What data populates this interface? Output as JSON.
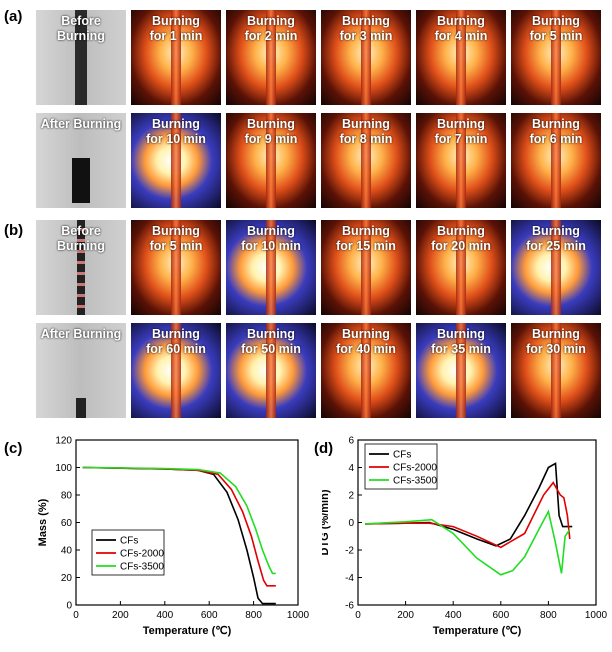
{
  "panel_labels": {
    "a": "(a)",
    "b": "(b)",
    "c": "(c)",
    "d": "(d)"
  },
  "row_a1": [
    "Before\nBurning",
    "Burning\nfor 1 min",
    "Burning\nfor 2 min",
    "Burning\nfor 3 min",
    "Burning\nfor 4 min",
    "Burning\nfor 5 min"
  ],
  "row_a2": [
    "After Burning",
    "Burning\nfor 10 min",
    "Burning\nfor 9 min",
    "Burning\nfor 8 min",
    "Burning\nfor 7 min",
    "Burning\nfor 6 min"
  ],
  "row_b1": [
    "Before\nBurning",
    "Burning\nfor 5 min",
    "Burning\nfor 10 min",
    "Burning\nfor 15 min",
    "Burning\nfor 20 min",
    "Burning\nfor 25 min"
  ],
  "row_b2": [
    "After Burning",
    "Burning\nfor 60 min",
    "Burning\nfor 50 min",
    "Burning\nfor 40 min",
    "Burning\nfor 35 min",
    "Burning\nfor 30 min"
  ],
  "chart_data": [
    {
      "type": "line",
      "xlabel": "Temperature (℃)",
      "ylabel": "Mass (%)",
      "xlim": [
        0,
        1000
      ],
      "ylim": [
        0,
        120
      ],
      "xticks": [
        0,
        200,
        400,
        600,
        800,
        1000
      ],
      "yticks": [
        0,
        20,
        40,
        60,
        80,
        100,
        120
      ],
      "legend": "bottom-left",
      "series": [
        {
          "name": "CFs",
          "color": "#000000",
          "x": [
            30,
            200,
            400,
            550,
            620,
            680,
            730,
            770,
            800,
            820,
            840,
            860,
            900
          ],
          "y": [
            100,
            99.5,
            99,
            98,
            95,
            82,
            62,
            40,
            20,
            5,
            1,
            1,
            1
          ]
        },
        {
          "name": "CFs-2000",
          "color": "#e00000",
          "x": [
            30,
            200,
            400,
            550,
            640,
            700,
            750,
            790,
            820,
            845,
            860,
            900
          ],
          "y": [
            100,
            99.6,
            99,
            98,
            95,
            84,
            68,
            50,
            32,
            18,
            14,
            14
          ]
        },
        {
          "name": "CFs-3500",
          "color": "#22dd22",
          "x": [
            30,
            200,
            400,
            550,
            650,
            720,
            770,
            810,
            840,
            870,
            885,
            900
          ],
          "y": [
            100,
            99.7,
            99.2,
            98.5,
            96,
            86,
            72,
            55,
            40,
            28,
            23,
            23
          ]
        }
      ]
    },
    {
      "type": "line",
      "xlabel": "Temperature (℃)",
      "ylabel": "DTG (%/min)",
      "xlim": [
        0,
        1000
      ],
      "ylim": [
        -6,
        6
      ],
      "xticks": [
        0,
        200,
        400,
        600,
        800,
        1000
      ],
      "yticks": [
        -6,
        -4,
        -2,
        0,
        2,
        4,
        6
      ],
      "legend": "top-left",
      "series": [
        {
          "name": "CFs",
          "color": "#000000",
          "x": [
            30,
            200,
            300,
            400,
            500,
            580,
            640,
            700,
            760,
            800,
            830,
            845,
            860,
            900
          ],
          "y": [
            -0.1,
            -0.05,
            0,
            -0.5,
            -1.2,
            -1.7,
            -1.2,
            0.5,
            2.5,
            4.0,
            4.3,
            0.5,
            -0.3,
            -0.3
          ]
        },
        {
          "name": "CFs-2000",
          "color": "#e00000",
          "x": [
            30,
            200,
            300,
            400,
            500,
            600,
            700,
            780,
            820,
            850,
            865,
            880,
            890
          ],
          "y": [
            -0.1,
            -0.05,
            -0.05,
            -0.3,
            -1.0,
            -1.8,
            -0.8,
            2.0,
            2.9,
            2.0,
            1.8,
            0.5,
            -1.2
          ]
        },
        {
          "name": "CFs-3500",
          "color": "#22dd22",
          "x": [
            30,
            200,
            310,
            400,
            500,
            600,
            650,
            700,
            760,
            800,
            830,
            855,
            870,
            890
          ],
          "y": [
            -0.1,
            0.05,
            0.2,
            -0.8,
            -2.6,
            -3.8,
            -3.5,
            -2.5,
            -0.5,
            0.8,
            -1.5,
            -3.7,
            -1.0,
            -0.5
          ]
        }
      ]
    }
  ]
}
